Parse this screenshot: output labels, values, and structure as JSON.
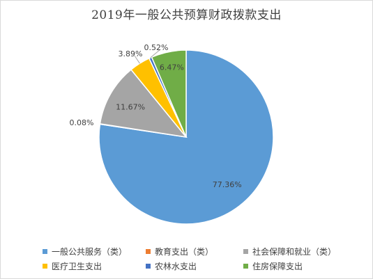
{
  "chart_data": {
    "type": "pie",
    "title": "2019年一般公共预算财政拨款支出",
    "categories": [
      "一般公共服务（类）",
      "教育支出（类）",
      "社会保障和就业（类）",
      "医疗卫生支出",
      "农林水支出",
      "住房保障支出"
    ],
    "values": [
      77.36,
      0.08,
      11.67,
      3.89,
      0.52,
      6.47
    ],
    "value_labels": [
      "77.36%",
      "0.08%",
      "11.67%",
      "3.89%",
      "0.52%",
      "6.47%"
    ],
    "colors": [
      "#5b9bd5",
      "#ed7d31",
      "#a5a5a5",
      "#ffc000",
      "#4472c4",
      "#70ad47"
    ],
    "legend_position": "bottom"
  }
}
